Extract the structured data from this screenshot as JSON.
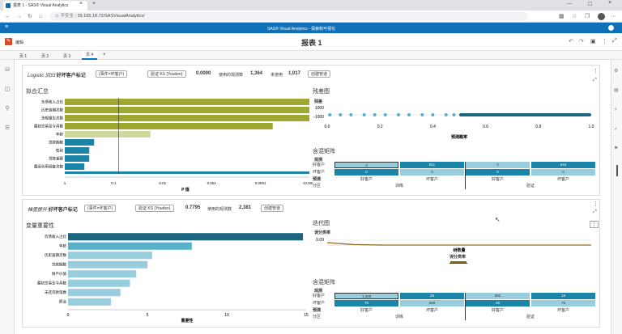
{
  "browser": {
    "tab_title": "报表 1 - SAS® Visual Analytics",
    "new_tab": "+",
    "insecure": "不安全",
    "url": "39.105.18.72/SASVisualAnalytics/"
  },
  "app": {
    "title": "SAS® Visual Analytics - 探索和可视化"
  },
  "toolbar": {
    "edit_label": "编辑",
    "report_title": "报表 1"
  },
  "pages": [
    "页 1",
    "页 2",
    "页 3",
    "页 4"
  ],
  "add_page": "+",
  "model1": {
    "model_name": "Logistic 回归",
    "target": "好坏客户标记",
    "event_btn": "(事件=坏客户)",
    "ks_btn": "验证 KS (Youden)",
    "ks_value": "0.0000",
    "obs_used_label": "使用的观测数",
    "obs_used": "1,364",
    "obs_unused_label": "未使用",
    "obs_unused": "1,017",
    "pipeline_btn": "创建管道",
    "fit_title": "拟合汇总",
    "fit_vars": [
      "负债收入占比",
      "历史逾期次数",
      "违规报告次数",
      "最初交易至今月数",
      "年龄",
      "贷款期数",
      "性别",
      "贷款金额",
      "最近信用调查次数"
    ],
    "fit_xlabel": "P 值",
    "fit_ticks": [
      "1",
      "0.1",
      "0.01",
      "0.001",
      "0.0001",
      "<0.0001"
    ],
    "resid_title": "残差图",
    "resid_ylabel": "残差",
    "resid_yticks": [
      "1000",
      "-1000"
    ],
    "resid_xticks": [
      "0.0",
      "0.2",
      "0.4",
      "0.6",
      "0.8",
      "1.0"
    ],
    "resid_xlabel": "预测概率",
    "cm_title": "含混矩阵",
    "cm_observed": "观测",
    "cm_row_labels": [
      "好客户",
      "坏客户"
    ],
    "cm_train": [
      "3",
      "811",
      "2",
      "544"
    ],
    "cm_valid": [
      "0",
      "0",
      "0",
      "0"
    ],
    "cm_pred_label": "预测",
    "cm_pred_cols": [
      "好客户",
      "坏客户",
      "好客户",
      "坏客户"
    ],
    "cm_part_label": "分区",
    "cm_parts": [
      "训练",
      "验证"
    ]
  },
  "model2": {
    "model_name": "梯度提升",
    "target": "好坏客户标记",
    "event_btn": "(事件=坏客户)",
    "ks_btn": "验证 KS (Youden)",
    "ks_value": "0.7795",
    "obs_used_label": "使用的观测数",
    "obs_used": "2,381",
    "pipeline_btn": "创建管道",
    "imp_title": "变量重要性",
    "imp_vars": [
      "负债收入占比",
      "年龄",
      "历史逾期次数",
      "贷款期数",
      "财产价值",
      "最初交易至今月数",
      "未还贷款笔数",
      "职业"
    ],
    "imp_xticks": [
      "0",
      "5",
      "10",
      "15"
    ],
    "imp_xlabel": "重要性",
    "iter_title": "迭代图",
    "iter_ylabel": "误分类率",
    "iter_ytick": "0.09",
    "iter_xlabel": "树数量",
    "iter_legend": "误分类率",
    "cm_title": "含混矩阵",
    "cm_observed": "观测",
    "cm_row_labels": [
      "好客户",
      "坏客户"
    ],
    "cm_train": [
      "1,308",
      "26",
      "882",
      "19"
    ],
    "cm_valid": [
      "75",
      "569",
      "45",
      "75"
    ],
    "cm_pred_label": "预测",
    "cm_pred_cols": [
      "好客户",
      "坏客户",
      "好客户",
      "坏客户"
    ],
    "cm_part_label": "分区",
    "cm_parts": [
      "训练",
      "验证"
    ]
  },
  "colors": {
    "olive": "#9ea82e",
    "olive_light": "#cfd89b",
    "teal": "#1b85a8",
    "teal_mid": "#5ab0c8",
    "teal_light": "#98cddd",
    "dark_teal": "#1b6680",
    "brand": "#0f70b8"
  },
  "chart_data": [
    {
      "type": "bar",
      "title": "拟合汇总",
      "xlabel": "P 值",
      "categories": [
        "负债收入占比",
        "历史逾期次数",
        "违规报告次数",
        "最初交易至今月数",
        "年龄",
        "贷款期数",
        "性别",
        "贷款金额",
        "最近信用调查次数"
      ],
      "values": [
        1.0,
        1.0,
        1.0,
        0.85,
        0.35,
        0.12,
        0.1,
        0.1,
        0.08
      ]
    },
    {
      "type": "bar",
      "title": "变量重要性",
      "xlabel": "重要性",
      "categories": [
        "负债收入占比",
        "年龄",
        "历史逾期次数",
        "贷款期数",
        "财产价值",
        "最初交易至今月数",
        "未还贷款笔数",
        "职业"
      ],
      "values": [
        14.8,
        7.8,
        5.3,
        5.0,
        4.3,
        3.9,
        3.3,
        2.7
      ],
      "xlim": [
        0,
        15
      ]
    },
    {
      "type": "line",
      "title": "迭代图",
      "ylabel": "误分类率",
      "xlabel": "树数量",
      "series": [
        {
          "name": "误分类率",
          "values": [
            0.1,
            0.092,
            0.09,
            0.09,
            0.09,
            0.09,
            0.09,
            0.09,
            0.09,
            0.09,
            0.09
          ]
        }
      ]
    }
  ]
}
